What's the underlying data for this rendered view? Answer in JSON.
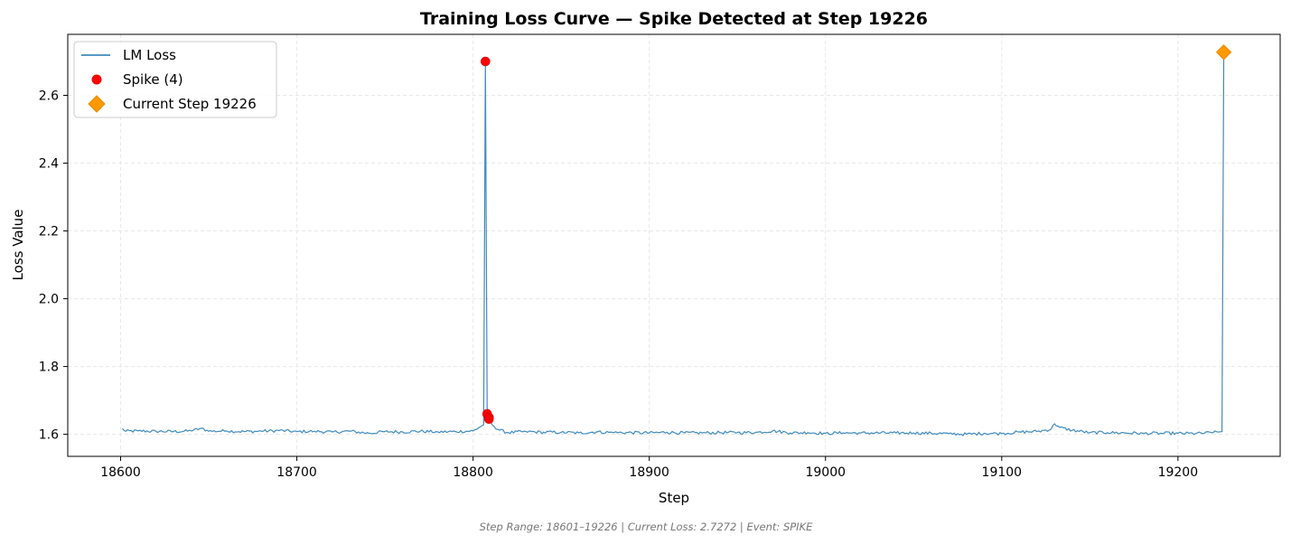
{
  "chart_data": {
    "type": "line",
    "title": "Training Loss Curve — Spike Detected at Step 19226",
    "xlabel": "Step",
    "ylabel": "Loss Value",
    "xlim": [
      18570,
      19258
    ],
    "ylim": [
      1.535,
      2.78
    ],
    "xticks": [
      18600,
      18700,
      18800,
      18900,
      19000,
      19100,
      19200
    ],
    "yticks": [
      1.6,
      1.8,
      2.0,
      2.2,
      2.4,
      2.6
    ],
    "grid": true,
    "legend_position": "top-left",
    "series": [
      {
        "name": "LM Loss",
        "color": "#1f77b4",
        "x_start": 18601,
        "x_end": 19226,
        "baseline": 1.607,
        "points": [
          [
            18601,
            1.617
          ],
          [
            18603,
            1.609
          ],
          [
            18610,
            1.61
          ],
          [
            18620,
            1.609
          ],
          [
            18630,
            1.608
          ],
          [
            18640,
            1.61
          ],
          [
            18646,
            1.618
          ],
          [
            18650,
            1.609
          ],
          [
            18660,
            1.61
          ],
          [
            18670,
            1.608
          ],
          [
            18680,
            1.609
          ],
          [
            18690,
            1.611
          ],
          [
            18700,
            1.608
          ],
          [
            18710,
            1.609
          ],
          [
            18720,
            1.607
          ],
          [
            18730,
            1.609
          ],
          [
            18741,
            1.603
          ],
          [
            18750,
            1.608
          ],
          [
            18760,
            1.607
          ],
          [
            18770,
            1.609
          ],
          [
            18780,
            1.607
          ],
          [
            18790,
            1.608
          ],
          [
            18800,
            1.61
          ],
          [
            18805,
            1.625
          ],
          [
            18806,
            1.628
          ],
          [
            18807,
            2.7
          ],
          [
            18808,
            1.66
          ],
          [
            18809,
            1.645
          ],
          [
            18811,
            1.627
          ],
          [
            18815,
            1.612
          ],
          [
            18820,
            1.605
          ],
          [
            18830,
            1.608
          ],
          [
            18840,
            1.606
          ],
          [
            18850,
            1.606
          ],
          [
            18860,
            1.604
          ],
          [
            18870,
            1.607
          ],
          [
            18880,
            1.605
          ],
          [
            18890,
            1.605
          ],
          [
            18900,
            1.604
          ],
          [
            18910,
            1.606
          ],
          [
            18920,
            1.604
          ],
          [
            18930,
            1.604
          ],
          [
            18940,
            1.605
          ],
          [
            18950,
            1.605
          ],
          [
            18960,
            1.605
          ],
          [
            18970,
            1.61
          ],
          [
            18980,
            1.604
          ],
          [
            18990,
            1.605
          ],
          [
            19000,
            1.603
          ],
          [
            19010,
            1.604
          ],
          [
            19020,
            1.604
          ],
          [
            19030,
            1.604
          ],
          [
            19040,
            1.604
          ],
          [
            19050,
            1.604
          ],
          [
            19060,
            1.603
          ],
          [
            19070,
            1.602
          ],
          [
            19080,
            1.6
          ],
          [
            19090,
            1.603
          ],
          [
            19100,
            1.602
          ],
          [
            19110,
            1.607
          ],
          [
            19120,
            1.608
          ],
          [
            19128,
            1.615
          ],
          [
            19130,
            1.631
          ],
          [
            19133,
            1.62
          ],
          [
            19140,
            1.612
          ],
          [
            19150,
            1.605
          ],
          [
            19160,
            1.605
          ],
          [
            19170,
            1.604
          ],
          [
            19180,
            1.603
          ],
          [
            19190,
            1.603
          ],
          [
            19200,
            1.603
          ],
          [
            19210,
            1.602
          ],
          [
            19220,
            1.605
          ],
          [
            19225,
            1.608
          ],
          [
            19226,
            2.7272
          ]
        ]
      },
      {
        "name": "Spike (4)",
        "type": "scatter",
        "color": "#ff0000",
        "x": [
          18807,
          18808,
          18809,
          18809
        ],
        "y": [
          2.7,
          1.66,
          1.65,
          1.645
        ]
      },
      {
        "name": "Current Step 19226",
        "type": "scatter",
        "marker": "diamond",
        "color": "#ff9900",
        "x": [
          19226
        ],
        "y": [
          2.7272
        ]
      }
    ]
  },
  "legend": {
    "items": [
      "LM Loss",
      "Spike (4)",
      "Current Step 19226"
    ]
  },
  "footer": {
    "text": "Step Range: 18601–19226 | Current Loss: 2.7272 | Event: SPIKE"
  },
  "colors": {
    "line": "#1f77b4",
    "spike": "#ff0000",
    "current": "#ff9900",
    "grid": "#e8e8e8"
  }
}
